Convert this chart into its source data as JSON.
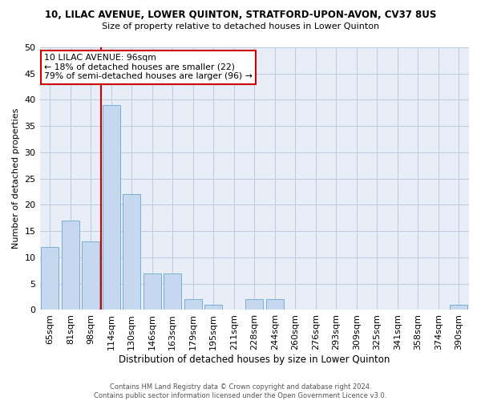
{
  "title": "10, LILAC AVENUE, LOWER QUINTON, STRATFORD-UPON-AVON, CV37 8US",
  "subtitle": "Size of property relative to detached houses in Lower Quinton",
  "xlabel": "Distribution of detached houses by size in Lower Quinton",
  "ylabel": "Number of detached properties",
  "bar_color": "#c5d8f0",
  "bar_edge_color": "#7badd4",
  "vline_color": "#cc0000",
  "categories": [
    "65sqm",
    "81sqm",
    "98sqm",
    "114sqm",
    "130sqm",
    "146sqm",
    "163sqm",
    "179sqm",
    "195sqm",
    "211sqm",
    "228sqm",
    "244sqm",
    "260sqm",
    "276sqm",
    "293sqm",
    "309sqm",
    "325sqm",
    "341sqm",
    "358sqm",
    "374sqm",
    "390sqm"
  ],
  "values": [
    12,
    17,
    13,
    39,
    22,
    7,
    7,
    2,
    1,
    0,
    2,
    2,
    0,
    0,
    0,
    0,
    0,
    0,
    0,
    0,
    1
  ],
  "ylim": [
    0,
    50
  ],
  "annotation_line1": "10 LILAC AVENUE: 96sqm",
  "annotation_line2": "← 18% of detached houses are smaller (22)",
  "annotation_line3": "79% of semi-detached houses are larger (96) →",
  "annotation_box_color": "white",
  "annotation_box_edge": "#cc0000",
  "footer": "Contains HM Land Registry data © Crown copyright and database right 2024.\nContains public sector information licensed under the Open Government Licence v3.0.",
  "background_color": "#ffffff",
  "plot_bg_color": "#e8eef8",
  "grid_color": "#c0cce0"
}
